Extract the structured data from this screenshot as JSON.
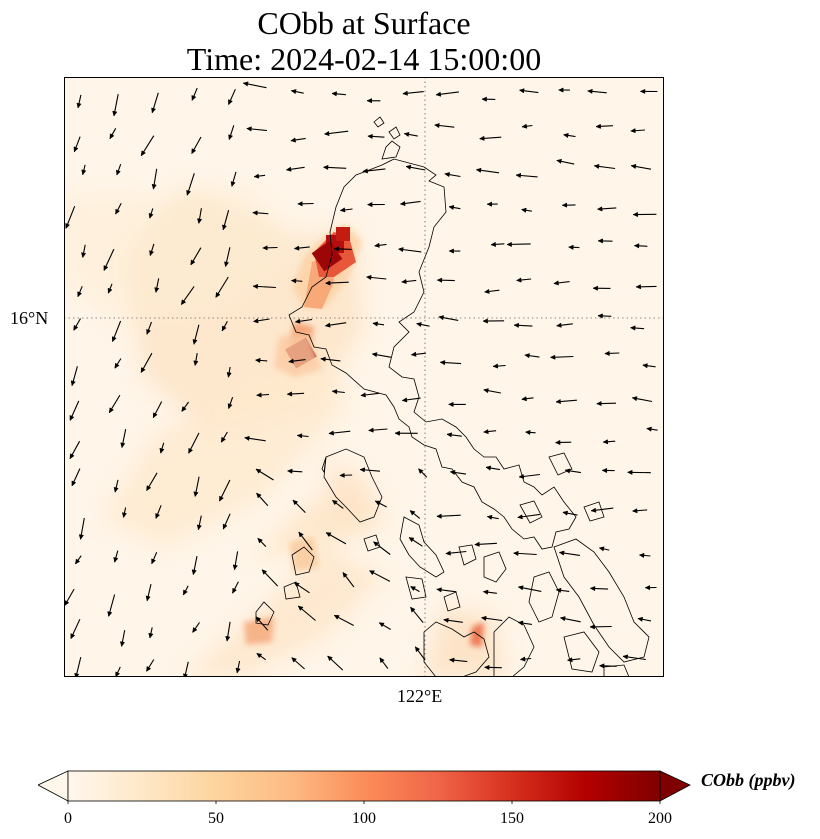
{
  "title": {
    "line1": "CObb at Surface",
    "line2": "Time: 2024-02-14 15:00:00"
  },
  "axes": {
    "lat_tick": "16°N",
    "lon_tick": "122°E",
    "gridline_style": "dotted"
  },
  "colorbar": {
    "label": "CObb (ppbv)",
    "colormap": "OrRd",
    "ticks": [
      "0",
      "50",
      "100",
      "150",
      "200"
    ],
    "range": [
      0,
      200
    ],
    "extend": "both",
    "colors": [
      "#fff7ec",
      "#fee8c8",
      "#fdd49e",
      "#fdbb84",
      "#fc8d59",
      "#ef6548",
      "#d7301f",
      "#b30000",
      "#7f0000"
    ]
  },
  "map": {
    "features": [
      "coastline",
      "wind-vectors",
      "concentration-field"
    ],
    "hotspots_ppbv": [
      200,
      200,
      120,
      100,
      90,
      70,
      60
    ]
  }
}
